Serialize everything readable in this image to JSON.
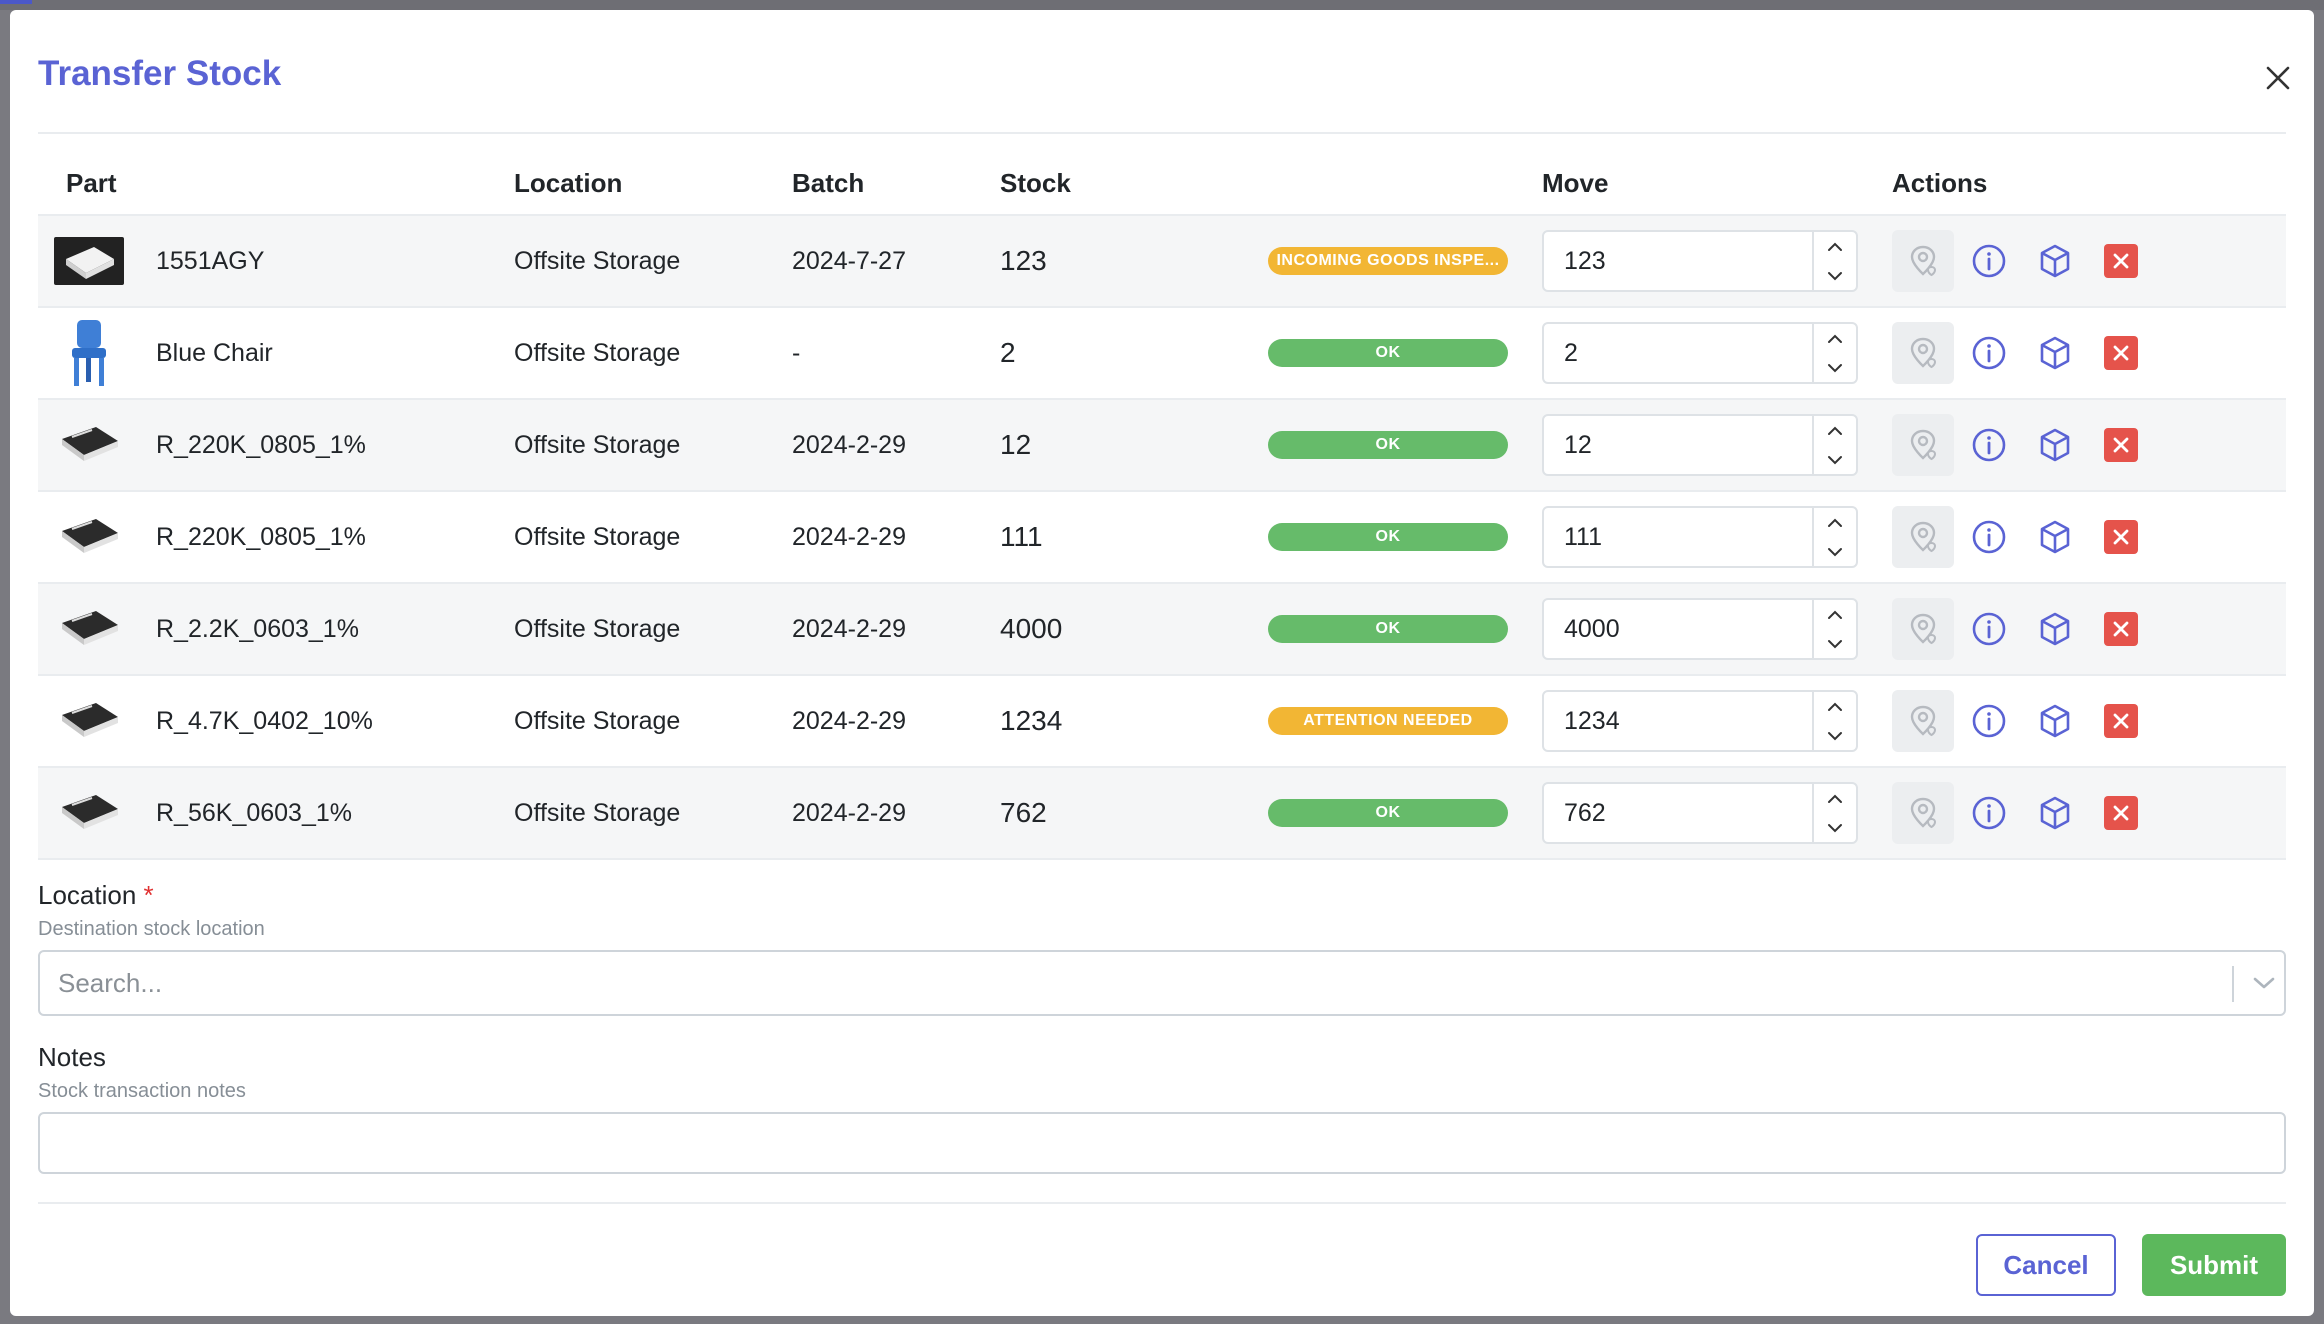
{
  "modal": {
    "title": "Transfer Stock"
  },
  "table": {
    "headers": {
      "part": "Part",
      "location": "Location",
      "batch": "Batch",
      "stock": "Stock",
      "move": "Move",
      "actions": "Actions"
    },
    "rows": [
      {
        "part": "1551AGY",
        "location": "Offsite Storage",
        "batch": "2024-7-27",
        "stock": "123",
        "status": "INCOMING GOODS INSPE...",
        "status_kind": "warn",
        "move": "123",
        "thumb": "enclosure-thumb"
      },
      {
        "part": "Blue Chair",
        "location": "Offsite Storage",
        "batch": "-",
        "stock": "2",
        "status": "OK",
        "status_kind": "ok",
        "move": "2",
        "thumb": "chair-thumb"
      },
      {
        "part": "R_220K_0805_1%",
        "location": "Offsite Storage",
        "batch": "2024-2-29",
        "stock": "12",
        "status": "OK",
        "status_kind": "ok",
        "move": "12",
        "thumb": "resistor-thumb"
      },
      {
        "part": "R_220K_0805_1%",
        "location": "Offsite Storage",
        "batch": "2024-2-29",
        "stock": "111",
        "status": "OK",
        "status_kind": "ok",
        "move": "111",
        "thumb": "resistor-thumb"
      },
      {
        "part": "R_2.2K_0603_1%",
        "location": "Offsite Storage",
        "batch": "2024-2-29",
        "stock": "4000",
        "status": "OK",
        "status_kind": "ok",
        "move": "4000",
        "thumb": "resistor-thumb"
      },
      {
        "part": "R_4.7K_0402_10%",
        "location": "Offsite Storage",
        "batch": "2024-2-29",
        "stock": "1234",
        "status": "ATTENTION NEEDED",
        "status_kind": "warn",
        "move": "1234",
        "thumb": "resistor-thumb"
      },
      {
        "part": "R_56K_0603_1%",
        "location": "Offsite Storage",
        "batch": "2024-2-29",
        "stock": "762",
        "status": "OK",
        "status_kind": "ok",
        "move": "762",
        "thumb": "resistor-thumb"
      }
    ]
  },
  "location_field": {
    "label": "Location",
    "required_mark": "*",
    "description": "Destination stock location",
    "placeholder": "Search..."
  },
  "notes_field": {
    "label": "Notes",
    "description": "Stock transaction notes",
    "value": ""
  },
  "footer": {
    "cancel_label": "Cancel",
    "submit_label": "Submit"
  },
  "colors": {
    "accent": "#5a63d4",
    "ok": "#66bb6a",
    "warn": "#f2b634",
    "danger": "#e5534b",
    "submit": "#5cb85c"
  },
  "icons": [
    "close-icon",
    "chevron-up-icon",
    "chevron-down-icon",
    "location-icon",
    "info-icon",
    "package-icon",
    "remove-icon"
  ]
}
